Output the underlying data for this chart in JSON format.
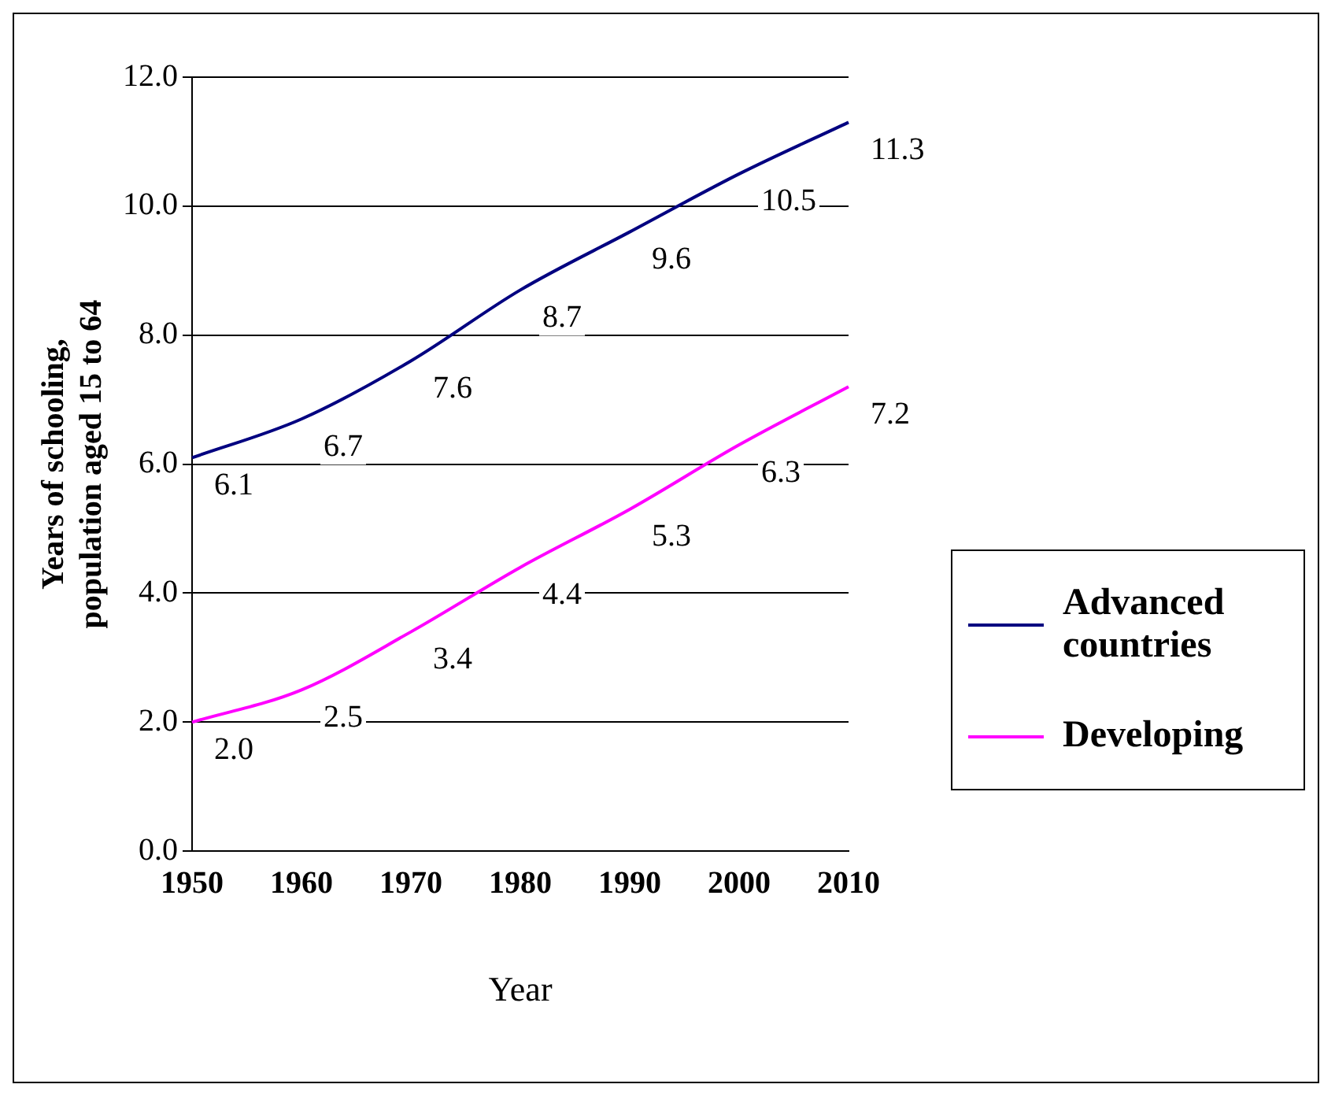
{
  "chart_data": {
    "type": "line",
    "xlabel": "Year",
    "ylabel": "Years of schooling, population aged 15 to 64",
    "categories": [
      "1950",
      "1960",
      "1970",
      "1980",
      "1990",
      "2000",
      "2010"
    ],
    "series": [
      {
        "name": "Advanced countries",
        "color": "#000080",
        "values": [
          6.1,
          6.7,
          7.6,
          8.7,
          9.6,
          10.5,
          11.3
        ],
        "value_labels": [
          "6.1",
          "6.7",
          "7.6",
          "8.7",
          "9.6",
          "10.5",
          "11.3"
        ]
      },
      {
        "name": "Developing",
        "color": "#ff00ff",
        "values": [
          2.0,
          2.5,
          3.4,
          4.4,
          5.3,
          6.3,
          7.2
        ],
        "value_labels": [
          "2.0",
          "2.5",
          "3.4",
          "4.4",
          "5.3",
          "6.3",
          "7.2"
        ]
      }
    ],
    "ylim": [
      0,
      12
    ],
    "yticks": [
      {
        "value": 0,
        "label": "0.0"
      },
      {
        "value": 2,
        "label": "2.0"
      },
      {
        "value": 4,
        "label": "4.0"
      },
      {
        "value": 6,
        "label": "6.0"
      },
      {
        "value": 8,
        "label": "8.0"
      },
      {
        "value": 10,
        "label": "10.0"
      },
      {
        "value": 12,
        "label": "12.0"
      }
    ],
    "grid": "y",
    "legend": "right",
    "marker": "none",
    "line_style": "solid"
  }
}
